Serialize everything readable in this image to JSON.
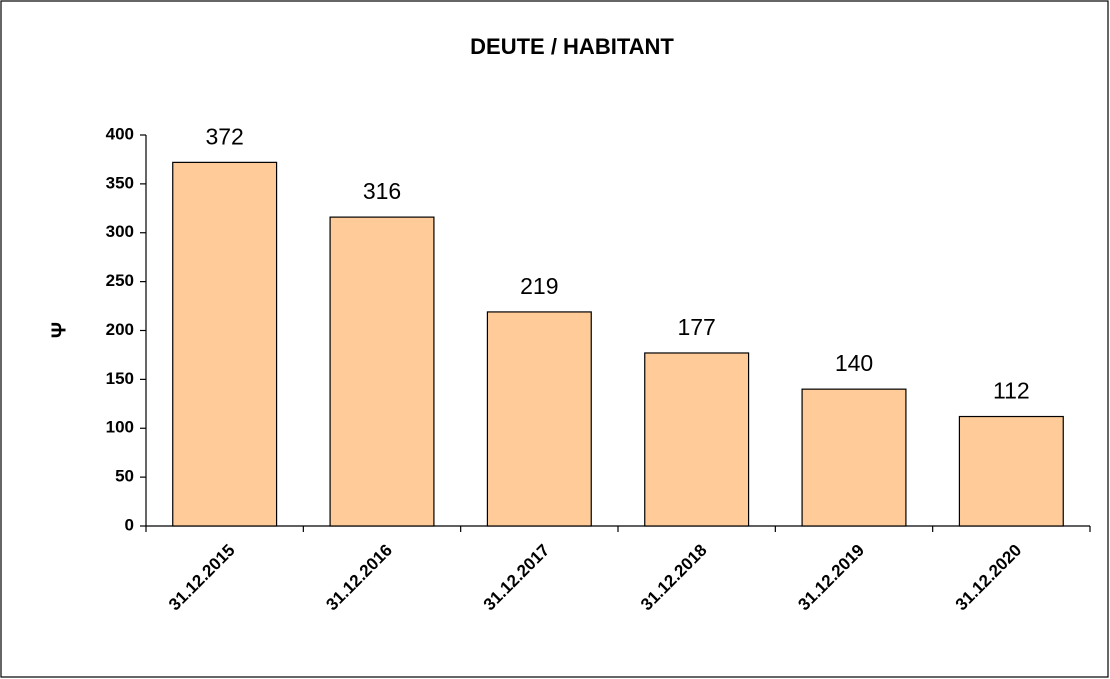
{
  "chart_data": {
    "type": "bar",
    "title": "DEUTE / HABITANT",
    "y_label": "Ψ",
    "categories": [
      "31.12.2015",
      "31.12.2016",
      "31.12.2017",
      "31.12.2018",
      "31.12.2019",
      "31.12.2020"
    ],
    "values": [
      372,
      316,
      219,
      177,
      140,
      112
    ],
    "color": "#ffcc99",
    "ylim": [
      0,
      400
    ],
    "yticks": [
      0,
      50,
      100,
      150,
      200,
      250,
      300,
      350,
      400
    ],
    "grid": false,
    "data_labels": true
  }
}
